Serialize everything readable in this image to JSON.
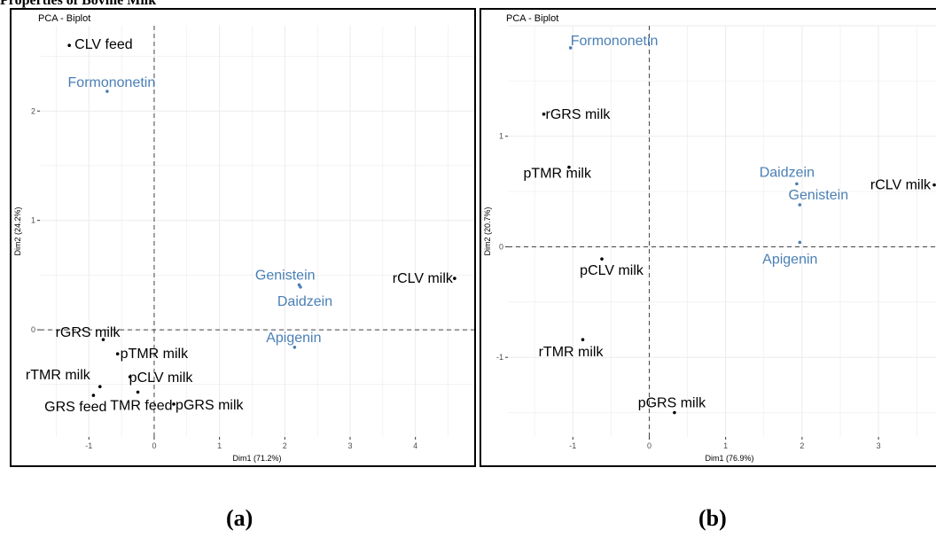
{
  "heading": "Properties of Bovine Milk",
  "captions": {
    "a": "(a)",
    "b": "(b)"
  },
  "colors": {
    "observation": "#000000",
    "variable": "#4a7fb5",
    "grid": "#ebebeb",
    "zero_line": "#444444"
  },
  "chart_data": [
    {
      "type": "scatter",
      "title": "PCA - Biplot",
      "xlabel": "Dim1 (71.2%)",
      "ylabel": "Dim2 (24.2%)",
      "xlim": [
        -1.75,
        4.9
      ],
      "ylim": [
        -0.98,
        2.78
      ],
      "xticks": [
        -1,
        0,
        1,
        2,
        3,
        4
      ],
      "yticks": [
        0,
        1,
        2
      ],
      "grid": true,
      "series": [
        {
          "name": "",
          "kind": "observation",
          "color": "#000000",
          "points": [
            {
              "label": "CLV feed",
              "x": -1.3,
              "y": 2.6
            },
            {
              "label": "rGRS milk",
              "x": -0.78,
              "y": -0.09
            },
            {
              "label": "pTMR milk",
              "x": -0.56,
              "y": -0.22
            },
            {
              "label": "rTMR milk",
              "x": -0.83,
              "y": -0.52
            },
            {
              "label": "pCLV milk",
              "x": -0.37,
              "y": -0.43
            },
            {
              "label": "GRS feed",
              "x": -0.93,
              "y": -0.6
            },
            {
              "label": "TMR feed",
              "x": -0.25,
              "y": -0.57
            },
            {
              "label": "pGRS milk",
              "x": 0.3,
              "y": -0.68
            },
            {
              "label": "rCLV milk",
              "x": 4.6,
              "y": 0.47
            }
          ]
        },
        {
          "name": "",
          "kind": "variable",
          "color": "#4a7fb5",
          "points": [
            {
              "label": "Formononetin",
              "x": -0.72,
              "y": 2.18
            },
            {
              "label": "Genistein",
              "x": 2.22,
              "y": 0.41
            },
            {
              "label": "Daidzein",
              "x": 2.24,
              "y": 0.39
            },
            {
              "label": "Apigenin",
              "x": 2.15,
              "y": -0.16
            }
          ]
        }
      ]
    },
    {
      "type": "scatter",
      "title": "PCA - Biplot",
      "xlabel": "Dim1 (76.9%)",
      "ylabel": "Dim2 (20.7%)",
      "xlim": [
        -1.85,
        3.95
      ],
      "ylim": [
        -1.72,
        2.0
      ],
      "xticks": [
        -1,
        0,
        1,
        2,
        3
      ],
      "yticks": [
        -1,
        0,
        1
      ],
      "grid": true,
      "series": [
        {
          "name": "",
          "kind": "observation",
          "color": "#000000",
          "points": [
            {
              "label": "rGRS milk",
              "x": -1.38,
              "y": 1.2
            },
            {
              "label": "pTMR milk",
              "x": -1.05,
              "y": 0.72
            },
            {
              "label": "rCLV milk",
              "x": 3.73,
              "y": 0.56
            },
            {
              "label": "pCLV milk",
              "x": -0.62,
              "y": -0.11
            },
            {
              "label": "rTMR milk",
              "x": -0.87,
              "y": -0.84
            },
            {
              "label": "pGRS milk",
              "x": 0.33,
              "y": -1.5
            }
          ]
        },
        {
          "name": "",
          "kind": "variable",
          "color": "#4a7fb5",
          "points": [
            {
              "label": "Formononetin",
              "x": -1.03,
              "y": 1.8
            },
            {
              "label": "Daidzein",
              "x": 1.93,
              "y": 0.57
            },
            {
              "label": "Genistein",
              "x": 1.97,
              "y": 0.38
            },
            {
              "label": "Apigenin",
              "x": 1.97,
              "y": 0.04
            }
          ]
        }
      ]
    }
  ]
}
